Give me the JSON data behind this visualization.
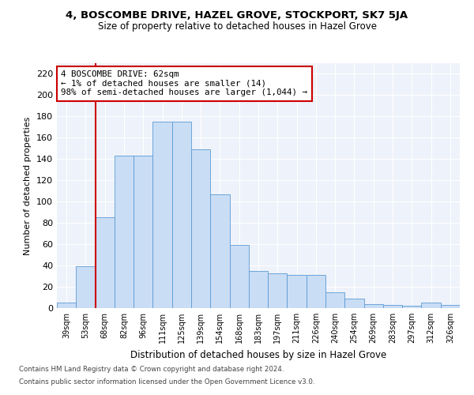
{
  "title": "4, BOSCOMBE DRIVE, HAZEL GROVE, STOCKPORT, SK7 5JA",
  "subtitle": "Size of property relative to detached houses in Hazel Grove",
  "xlabel": "Distribution of detached houses by size in Hazel Grove",
  "ylabel": "Number of detached properties",
  "footnote1": "Contains HM Land Registry data © Crown copyright and database right 2024.",
  "footnote2": "Contains public sector information licensed under the Open Government Licence v3.0.",
  "annotation_title": "4 BOSCOMBE DRIVE: 62sqm",
  "annotation_line1": "← 1% of detached houses are smaller (14)",
  "annotation_line2": "98% of semi-detached houses are larger (1,044) →",
  "bar_color": "#c9ddf5",
  "bar_edge_color": "#5b9bd5",
  "vline_color": "#cc0000",
  "annotation_box_edgecolor": "#cc0000",
  "bg_color": "#eef2fa",
  "categories": [
    "39sqm",
    "53sqm",
    "68sqm",
    "82sqm",
    "96sqm",
    "111sqm",
    "125sqm",
    "139sqm",
    "154sqm",
    "168sqm",
    "183sqm",
    "197sqm",
    "211sqm",
    "226sqm",
    "240sqm",
    "254sqm",
    "269sqm",
    "283sqm",
    "297sqm",
    "312sqm",
    "326sqm"
  ],
  "values": [
    5,
    39,
    85,
    143,
    143,
    175,
    175,
    149,
    107,
    59,
    35,
    33,
    31,
    31,
    15,
    9,
    4,
    3,
    2,
    5,
    3
  ],
  "ylim": [
    0,
    230
  ],
  "yticks": [
    0,
    20,
    40,
    60,
    80,
    100,
    120,
    140,
    160,
    180,
    200,
    220
  ],
  "vline_x": 1.5
}
